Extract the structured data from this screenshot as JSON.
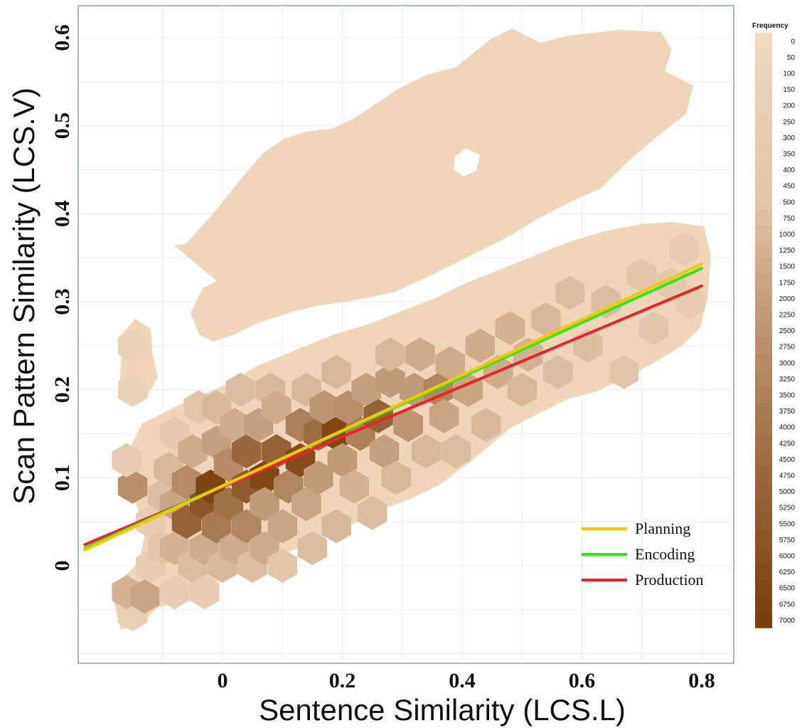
{
  "chart_data": {
    "type": "hexbin",
    "xlabel": "Sentence Similarity (LCS.L)",
    "ylabel": "Scan Pattern Similarity (LCS.V)",
    "xlim": [
      -0.24,
      0.85
    ],
    "ylim": [
      -0.1,
      0.635
    ],
    "x_ticks": [
      0,
      0.2,
      0.4,
      0.6,
      0.8
    ],
    "x_tick_labels": [
      "0",
      "0.2",
      "0.4",
      "0.6",
      "0.8"
    ],
    "y_ticks": [
      0,
      0.1,
      0.2,
      0.3,
      0.4,
      0.5,
      0.6
    ],
    "y_tick_labels": [
      "0",
      "0.1",
      "0.2",
      "0.3",
      "0.4",
      "0.5",
      "0.6"
    ],
    "grid": true,
    "colorbar": {
      "title": "Frequency",
      "levels": [
        0,
        50,
        100,
        150,
        200,
        250,
        300,
        350,
        400,
        450,
        500,
        750,
        1000,
        1250,
        1500,
        1750,
        2000,
        2250,
        2500,
        2750,
        3000,
        3250,
        3500,
        3750,
        4000,
        4250,
        4500,
        4750,
        5000,
        5250,
        5500,
        5750,
        6000,
        6250,
        6500,
        6750,
        7000
      ],
      "color_low": "#efd9c0",
      "color_high": "#7a3f0c"
    },
    "hex_bins": [
      {
        "x": -0.15,
        "y": -0.055,
        "count": 200
      },
      {
        "x": -0.16,
        "y": -0.03,
        "count": 1250
      },
      {
        "x": -0.13,
        "y": -0.035,
        "count": 1750
      },
      {
        "x": -0.12,
        "y": 0.0,
        "count": 250
      },
      {
        "x": -0.12,
        "y": 0.05,
        "count": 300
      },
      {
        "x": -0.15,
        "y": 0.09,
        "count": 2750
      },
      {
        "x": -0.16,
        "y": 0.12,
        "count": 300
      },
      {
        "x": -0.15,
        "y": 0.2,
        "count": 150
      },
      {
        "x": -0.15,
        "y": 0.25,
        "count": 150
      },
      {
        "x": -0.1,
        "y": 0.08,
        "count": 750
      },
      {
        "x": -0.1,
        "y": 0.02,
        "count": 500
      },
      {
        "x": -0.08,
        "y": -0.03,
        "count": 300
      },
      {
        "x": -0.08,
        "y": 0.02,
        "count": 1250
      },
      {
        "x": -0.08,
        "y": 0.07,
        "count": 1750
      },
      {
        "x": -0.09,
        "y": 0.11,
        "count": 1000
      },
      {
        "x": -0.08,
        "y": 0.15,
        "count": 400
      },
      {
        "x": -0.06,
        "y": 0.05,
        "count": 5000
      },
      {
        "x": -0.06,
        "y": 0.095,
        "count": 3000
      },
      {
        "x": -0.05,
        "y": 0.0,
        "count": 750
      },
      {
        "x": -0.05,
        "y": 0.13,
        "count": 1500
      },
      {
        "x": -0.04,
        "y": 0.18,
        "count": 500
      },
      {
        "x": -0.03,
        "y": -0.03,
        "count": 300
      },
      {
        "x": -0.03,
        "y": 0.02,
        "count": 1500
      },
      {
        "x": -0.03,
        "y": 0.07,
        "count": 5750
      },
      {
        "x": -0.02,
        "y": 0.09,
        "count": 6750
      },
      {
        "x": -0.01,
        "y": 0.045,
        "count": 3750
      },
      {
        "x": -0.01,
        "y": 0.14,
        "count": 2000
      },
      {
        "x": -0.01,
        "y": 0.18,
        "count": 1000
      },
      {
        "x": 0.0,
        "y": 0.0,
        "count": 1000
      },
      {
        "x": 0.01,
        "y": 0.115,
        "count": 3000
      },
      {
        "x": 0.01,
        "y": 0.07,
        "count": 4250
      },
      {
        "x": 0.02,
        "y": 0.02,
        "count": 1500
      },
      {
        "x": 0.02,
        "y": 0.16,
        "count": 1500
      },
      {
        "x": 0.03,
        "y": 0.2,
        "count": 750
      },
      {
        "x": 0.04,
        "y": 0.09,
        "count": 5500
      },
      {
        "x": 0.04,
        "y": 0.13,
        "count": 4750
      },
      {
        "x": 0.04,
        "y": 0.045,
        "count": 3250
      },
      {
        "x": 0.05,
        "y": 0.0,
        "count": 750
      },
      {
        "x": 0.06,
        "y": 0.16,
        "count": 2000
      },
      {
        "x": 0.07,
        "y": 0.1,
        "count": 6500
      },
      {
        "x": 0.07,
        "y": 0.07,
        "count": 2250
      },
      {
        "x": 0.07,
        "y": 0.02,
        "count": 1500
      },
      {
        "x": 0.08,
        "y": 0.2,
        "count": 1000
      },
      {
        "x": 0.09,
        "y": 0.13,
        "count": 5000
      },
      {
        "x": 0.09,
        "y": 0.18,
        "count": 1500
      },
      {
        "x": 0.1,
        "y": 0.045,
        "count": 1750
      },
      {
        "x": 0.1,
        "y": 0.0,
        "count": 500
      },
      {
        "x": 0.11,
        "y": 0.09,
        "count": 3250
      },
      {
        "x": 0.13,
        "y": 0.12,
        "count": 6250
      },
      {
        "x": 0.13,
        "y": 0.16,
        "count": 3500
      },
      {
        "x": 0.14,
        "y": 0.07,
        "count": 1750
      },
      {
        "x": 0.14,
        "y": 0.2,
        "count": 1000
      },
      {
        "x": 0.15,
        "y": 0.02,
        "count": 750
      },
      {
        "x": 0.16,
        "y": 0.1,
        "count": 2250
      },
      {
        "x": 0.16,
        "y": 0.15,
        "count": 4500
      },
      {
        "x": 0.17,
        "y": 0.18,
        "count": 2500
      },
      {
        "x": 0.19,
        "y": 0.15,
        "count": 6500
      },
      {
        "x": 0.19,
        "y": 0.045,
        "count": 1000
      },
      {
        "x": 0.19,
        "y": 0.22,
        "count": 1000
      },
      {
        "x": 0.2,
        "y": 0.12,
        "count": 2250
      },
      {
        "x": 0.21,
        "y": 0.18,
        "count": 2750
      },
      {
        "x": 0.22,
        "y": 0.09,
        "count": 1250
      },
      {
        "x": 0.23,
        "y": 0.15,
        "count": 3500
      },
      {
        "x": 0.24,
        "y": 0.2,
        "count": 2000
      },
      {
        "x": 0.25,
        "y": 0.06,
        "count": 750
      },
      {
        "x": 0.26,
        "y": 0.17,
        "count": 5000
      },
      {
        "x": 0.27,
        "y": 0.13,
        "count": 2000
      },
      {
        "x": 0.28,
        "y": 0.21,
        "count": 2250
      },
      {
        "x": 0.28,
        "y": 0.24,
        "count": 1000
      },
      {
        "x": 0.29,
        "y": 0.1,
        "count": 1000
      },
      {
        "x": 0.31,
        "y": 0.16,
        "count": 2500
      },
      {
        "x": 0.32,
        "y": 0.2,
        "count": 2250
      },
      {
        "x": 0.33,
        "y": 0.24,
        "count": 1500
      },
      {
        "x": 0.34,
        "y": 0.13,
        "count": 1000
      },
      {
        "x": 0.36,
        "y": 0.2,
        "count": 3250
      },
      {
        "x": 0.37,
        "y": 0.17,
        "count": 1750
      },
      {
        "x": 0.38,
        "y": 0.23,
        "count": 1500
      },
      {
        "x": 0.39,
        "y": 0.13,
        "count": 750
      },
      {
        "x": 0.41,
        "y": 0.2,
        "count": 1750
      },
      {
        "x": 0.43,
        "y": 0.25,
        "count": 1500
      },
      {
        "x": 0.44,
        "y": 0.16,
        "count": 1000
      },
      {
        "x": 0.46,
        "y": 0.22,
        "count": 1500
      },
      {
        "x": 0.48,
        "y": 0.27,
        "count": 1250
      },
      {
        "x": 0.5,
        "y": 0.2,
        "count": 1000
      },
      {
        "x": 0.51,
        "y": 0.24,
        "count": 1250
      },
      {
        "x": 0.54,
        "y": 0.28,
        "count": 1000
      },
      {
        "x": 0.56,
        "y": 0.22,
        "count": 750
      },
      {
        "x": 0.58,
        "y": 0.31,
        "count": 750
      },
      {
        "x": 0.61,
        "y": 0.25,
        "count": 750
      },
      {
        "x": 0.64,
        "y": 0.3,
        "count": 750
      },
      {
        "x": 0.67,
        "y": 0.22,
        "count": 500
      },
      {
        "x": 0.7,
        "y": 0.33,
        "count": 500
      },
      {
        "x": 0.72,
        "y": 0.27,
        "count": 500
      },
      {
        "x": 0.75,
        "y": 0.32,
        "count": 400
      },
      {
        "x": 0.77,
        "y": 0.36,
        "count": 300
      },
      {
        "x": 0.78,
        "y": 0.3,
        "count": 300
      }
    ],
    "lines": [
      {
        "name": "Planning",
        "color": "#f5c800",
        "x": [
          -0.23,
          0.8
        ],
        "y": [
          0.018,
          0.343
        ]
      },
      {
        "name": "Encoding",
        "color": "#33e61a",
        "x": [
          -0.23,
          0.8
        ],
        "y": [
          0.02,
          0.338
        ]
      },
      {
        "name": "Production",
        "color": "#ee2222",
        "x": [
          -0.23,
          0.8
        ],
        "y": [
          0.024,
          0.318
        ]
      }
    ],
    "legend_position": "bottom-right"
  }
}
